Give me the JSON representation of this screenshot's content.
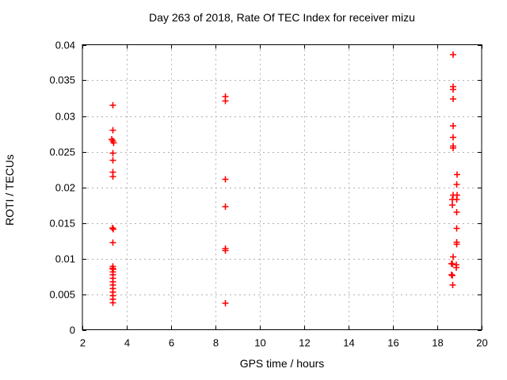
{
  "chart_data": {
    "type": "scatter",
    "title": "Day 263 of 2018, Rate Of TEC Index for receiver mizu",
    "xlabel": "GPS time / hours",
    "ylabel": "ROTI / TECUs",
    "xlim": [
      2,
      20
    ],
    "ylim": [
      0,
      0.04
    ],
    "xticks": [
      2,
      4,
      6,
      8,
      10,
      12,
      14,
      16,
      18,
      20
    ],
    "xtick_labels": [
      "2",
      "4",
      "6",
      "8",
      "10",
      "12",
      "14",
      "16",
      "18",
      "20"
    ],
    "yticks": [
      0,
      0.005,
      0.01,
      0.015,
      0.02,
      0.025,
      0.03,
      0.035,
      0.04
    ],
    "ytick_labels": [
      "0",
      "0.005",
      "0.01",
      "0.015",
      "0.02",
      "0.025",
      "0.03",
      "0.035",
      "0.04"
    ],
    "grid": true,
    "grid_style": "dotted",
    "legend_position": "none",
    "marker": "plus",
    "marker_color": "#ff0000",
    "grid_color": "#b0b0b0",
    "axis_color": "#000000",
    "background_color": "#ffffff",
    "series": [
      {
        "name": "ROTI",
        "points": [
          [
            3.38,
            0.0315
          ],
          [
            3.38,
            0.028
          ],
          [
            3.33,
            0.0267
          ],
          [
            3.38,
            0.0265
          ],
          [
            3.41,
            0.0262
          ],
          [
            3.38,
            0.0248
          ],
          [
            3.38,
            0.0238
          ],
          [
            3.37,
            0.0221
          ],
          [
            3.37,
            0.0215
          ],
          [
            3.36,
            0.0143
          ],
          [
            3.39,
            0.0141
          ],
          [
            3.38,
            0.0122
          ],
          [
            3.38,
            0.0089
          ],
          [
            3.36,
            0.0086
          ],
          [
            3.4,
            0.0085
          ],
          [
            3.38,
            0.0081
          ],
          [
            3.38,
            0.0077
          ],
          [
            3.38,
            0.0072
          ],
          [
            3.38,
            0.0067
          ],
          [
            3.38,
            0.0063
          ],
          [
            3.38,
            0.0058
          ],
          [
            3.38,
            0.0053
          ],
          [
            3.38,
            0.0048
          ],
          [
            3.38,
            0.0043
          ],
          [
            3.38,
            0.0038
          ],
          [
            8.45,
            0.0327
          ],
          [
            8.45,
            0.0321
          ],
          [
            8.45,
            0.0211
          ],
          [
            8.45,
            0.0173
          ],
          [
            8.45,
            0.0114
          ],
          [
            8.45,
            0.0111
          ],
          [
            8.44,
            0.0037
          ],
          [
            18.72,
            0.0386
          ],
          [
            18.72,
            0.0341
          ],
          [
            18.72,
            0.0337
          ],
          [
            18.72,
            0.0324
          ],
          [
            18.72,
            0.0286
          ],
          [
            18.72,
            0.027
          ],
          [
            18.72,
            0.0258
          ],
          [
            18.72,
            0.0255
          ],
          [
            18.9,
            0.0218
          ],
          [
            18.88,
            0.0204
          ],
          [
            18.72,
            0.0189
          ],
          [
            18.9,
            0.0189
          ],
          [
            18.68,
            0.0183
          ],
          [
            18.88,
            0.0183
          ],
          [
            18.68,
            0.0175
          ],
          [
            18.88,
            0.0165
          ],
          [
            18.88,
            0.0142
          ],
          [
            18.88,
            0.0123
          ],
          [
            18.88,
            0.012
          ],
          [
            18.72,
            0.0102
          ],
          [
            18.65,
            0.0093
          ],
          [
            18.68,
            0.0092
          ],
          [
            18.86,
            0.0091
          ],
          [
            18.86,
            0.0087
          ],
          [
            18.65,
            0.0077
          ],
          [
            18.68,
            0.0076
          ],
          [
            18.69,
            0.0063
          ]
        ]
      }
    ]
  }
}
